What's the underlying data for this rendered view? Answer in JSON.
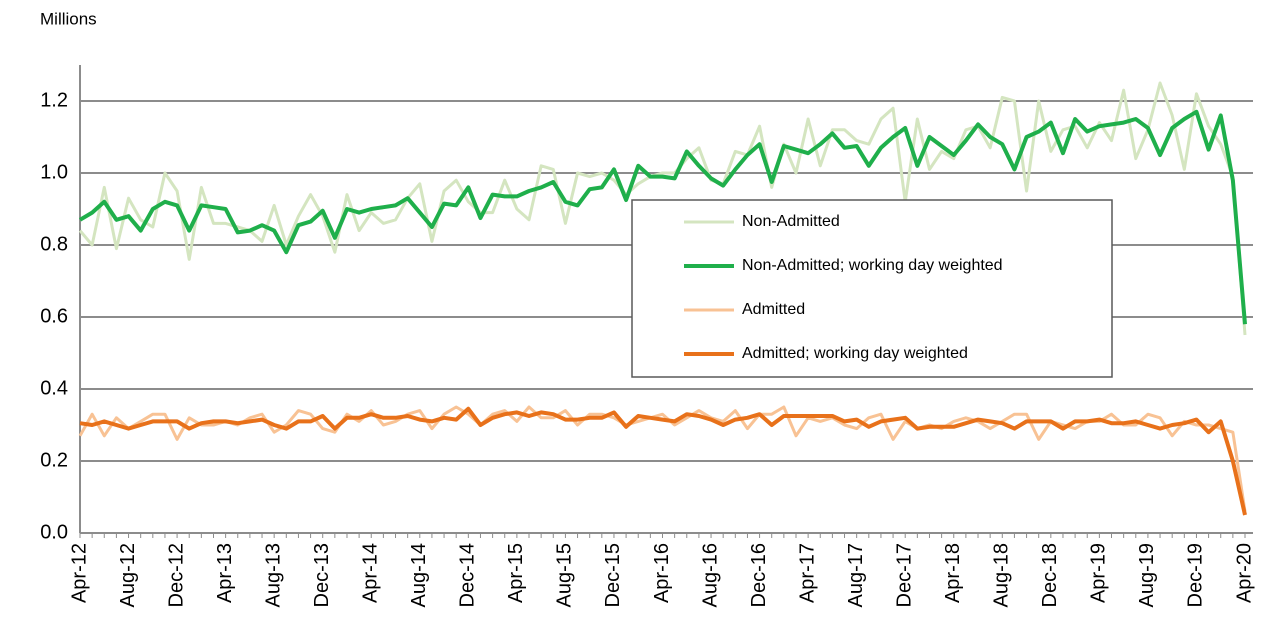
{
  "chart_data": {
    "type": "line",
    "y_label": "Millions",
    "categories": [
      "Apr-12",
      null,
      null,
      null,
      "Aug-12",
      null,
      null,
      null,
      "Dec-12",
      null,
      null,
      null,
      "Apr-13",
      null,
      null,
      null,
      "Aug-13",
      null,
      null,
      null,
      "Dec-13",
      null,
      null,
      null,
      "Apr-14",
      null,
      null,
      null,
      "Aug-14",
      null,
      null,
      null,
      "Dec-14",
      null,
      null,
      null,
      "Apr-15",
      null,
      null,
      null,
      "Aug-15",
      null,
      null,
      null,
      "Dec-15",
      null,
      null,
      null,
      "Apr-16",
      null,
      null,
      null,
      "Aug-16",
      null,
      null,
      null,
      "Dec-16",
      null,
      null,
      null,
      "Apr-17",
      null,
      null,
      null,
      "Aug-17",
      null,
      null,
      null,
      "Dec-17",
      null,
      null,
      null,
      "Apr-18",
      null,
      null,
      null,
      "Aug-18",
      null,
      null,
      null,
      "Dec-18",
      null,
      null,
      null,
      "Apr-19",
      null,
      null,
      null,
      "Aug-19",
      null,
      null,
      null,
      "Dec-19",
      null,
      null,
      null,
      "Apr-20"
    ],
    "series": [
      {
        "name": "Non-Admitted",
        "color": "#d4e5c0",
        "width": 3,
        "values": [
          0.84,
          0.8,
          0.96,
          0.79,
          0.93,
          0.87,
          0.85,
          1.0,
          0.95,
          0.76,
          0.96,
          0.86,
          0.86,
          0.85,
          0.84,
          0.81,
          0.91,
          0.8,
          0.88,
          0.94,
          0.88,
          0.78,
          0.94,
          0.84,
          0.89,
          0.86,
          0.87,
          0.93,
          0.97,
          0.81,
          0.95,
          0.98,
          0.92,
          0.89,
          0.89,
          0.98,
          0.9,
          0.87,
          1.02,
          1.01,
          0.86,
          1.0,
          0.99,
          1.0,
          0.98,
          0.94,
          0.97,
          0.99,
          1.0,
          1.0,
          1.04,
          1.07,
          0.98,
          0.97,
          1.06,
          1.05,
          1.13,
          0.96,
          1.08,
          1.0,
          1.15,
          1.02,
          1.12,
          1.12,
          1.09,
          1.08,
          1.15,
          1.18,
          0.92,
          1.15,
          1.01,
          1.06,
          1.04,
          1.12,
          1.13,
          1.07,
          1.21,
          1.2,
          0.95,
          1.2,
          1.06,
          1.12,
          1.13,
          1.07,
          1.14,
          1.09,
          1.23,
          1.04,
          1.12,
          1.25,
          1.16,
          1.01,
          1.22,
          1.13,
          1.08,
          0.99,
          0.55
        ]
      },
      {
        "name": "Non-Admitted; working day weighted",
        "color": "#1faf4b",
        "width": 4,
        "values": [
          0.87,
          0.89,
          0.92,
          0.87,
          0.88,
          0.84,
          0.9,
          0.92,
          0.91,
          0.84,
          0.91,
          0.905,
          0.9,
          0.835,
          0.84,
          0.855,
          0.84,
          0.78,
          0.855,
          0.865,
          0.895,
          0.82,
          0.9,
          0.89,
          0.9,
          0.905,
          0.91,
          0.93,
          0.89,
          0.85,
          0.915,
          0.91,
          0.96,
          0.875,
          0.94,
          0.935,
          0.935,
          0.95,
          0.96,
          0.975,
          0.92,
          0.91,
          0.955,
          0.96,
          1.01,
          0.925,
          1.02,
          0.99,
          0.99,
          0.985,
          1.06,
          1.02,
          0.985,
          0.965,
          1.01,
          1.05,
          1.08,
          0.975,
          1.075,
          1.065,
          1.055,
          1.08,
          1.11,
          1.07,
          1.075,
          1.02,
          1.07,
          1.1,
          1.125,
          1.02,
          1.1,
          1.075,
          1.05,
          1.09,
          1.135,
          1.1,
          1.08,
          1.01,
          1.1,
          1.115,
          1.14,
          1.055,
          1.15,
          1.115,
          1.13,
          1.135,
          1.14,
          1.15,
          1.125,
          1.05,
          1.125,
          1.15,
          1.17,
          1.065,
          1.16,
          0.98,
          0.58
        ]
      },
      {
        "name": "Admitted",
        "color": "#f8c294",
        "width": 3,
        "values": [
          0.27,
          0.33,
          0.27,
          0.32,
          0.29,
          0.31,
          0.33,
          0.33,
          0.26,
          0.32,
          0.3,
          0.3,
          0.31,
          0.3,
          0.32,
          0.33,
          0.28,
          0.3,
          0.34,
          0.33,
          0.29,
          0.28,
          0.33,
          0.31,
          0.34,
          0.3,
          0.31,
          0.33,
          0.34,
          0.29,
          0.33,
          0.35,
          0.33,
          0.3,
          0.33,
          0.34,
          0.31,
          0.35,
          0.32,
          0.32,
          0.34,
          0.3,
          0.33,
          0.33,
          0.32,
          0.3,
          0.31,
          0.32,
          0.33,
          0.3,
          0.32,
          0.34,
          0.32,
          0.31,
          0.34,
          0.29,
          0.33,
          0.33,
          0.35,
          0.27,
          0.32,
          0.31,
          0.32,
          0.3,
          0.29,
          0.32,
          0.33,
          0.26,
          0.31,
          0.29,
          0.3,
          0.29,
          0.31,
          0.32,
          0.31,
          0.29,
          0.31,
          0.33,
          0.33,
          0.26,
          0.31,
          0.3,
          0.29,
          0.31,
          0.31,
          0.33,
          0.3,
          0.3,
          0.33,
          0.32,
          0.27,
          0.31,
          0.3,
          0.3,
          0.29,
          0.28,
          0.06
        ]
      },
      {
        "name": "Admitted; working day weighted",
        "color": "#e8711a",
        "width": 4,
        "values": [
          0.305,
          0.3,
          0.31,
          0.3,
          0.29,
          0.3,
          0.31,
          0.31,
          0.31,
          0.29,
          0.305,
          0.31,
          0.31,
          0.305,
          0.31,
          0.315,
          0.3,
          0.29,
          0.31,
          0.31,
          0.325,
          0.29,
          0.32,
          0.32,
          0.33,
          0.32,
          0.32,
          0.325,
          0.315,
          0.31,
          0.32,
          0.315,
          0.345,
          0.3,
          0.32,
          0.33,
          0.335,
          0.325,
          0.335,
          0.33,
          0.315,
          0.315,
          0.32,
          0.32,
          0.335,
          0.295,
          0.325,
          0.32,
          0.315,
          0.31,
          0.33,
          0.325,
          0.315,
          0.3,
          0.315,
          0.32,
          0.33,
          0.3,
          0.325,
          0.325,
          0.325,
          0.325,
          0.325,
          0.31,
          0.315,
          0.295,
          0.31,
          0.315,
          0.32,
          0.29,
          0.295,
          0.295,
          0.295,
          0.305,
          0.315,
          0.31,
          0.305,
          0.29,
          0.31,
          0.31,
          0.31,
          0.29,
          0.31,
          0.31,
          0.315,
          0.305,
          0.305,
          0.31,
          0.3,
          0.29,
          0.3,
          0.305,
          0.315,
          0.28,
          0.31,
          0.2,
          0.05
        ]
      }
    ],
    "ylim": [
      0,
      1.3
    ],
    "yticks": [
      {
        "value": 0,
        "label": "0.0"
      },
      0.2,
      0.4,
      0.6,
      0.8,
      {
        "value": 1,
        "label": "1.0"
      },
      1.2
    ],
    "grid": true,
    "legend": "center-right"
  }
}
